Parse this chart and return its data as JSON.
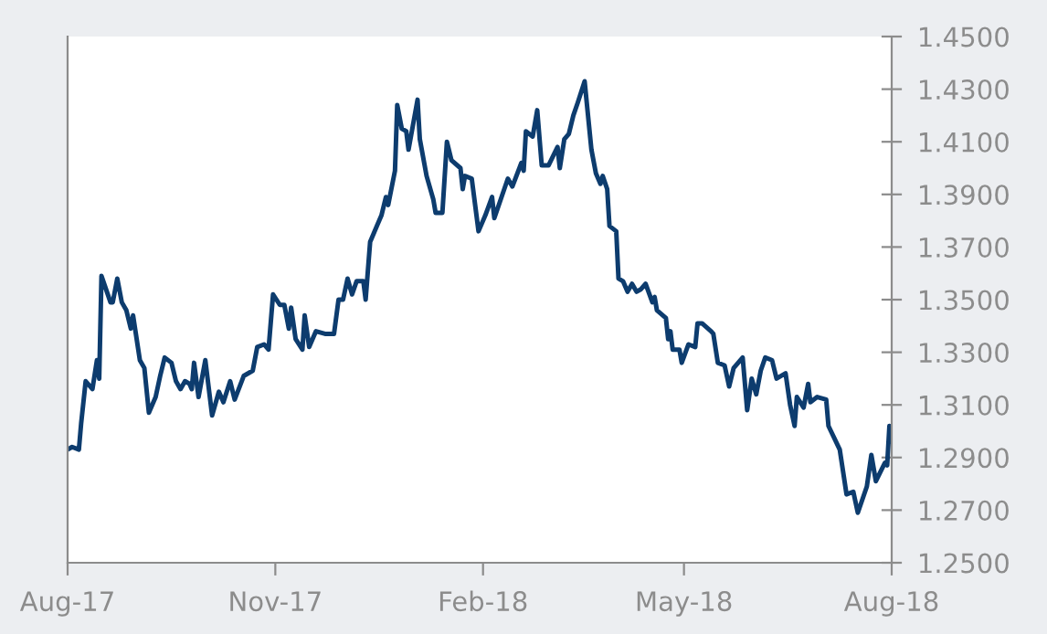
{
  "chart_data": {
    "type": "line",
    "x": [
      "2017-08-01",
      "2017-08-03",
      "2017-08-06",
      "2017-08-07",
      "2017-08-09",
      "2017-08-12",
      "2017-08-14",
      "2017-08-15",
      "2017-08-16",
      "2017-08-20",
      "2017-08-21",
      "2017-08-23",
      "2017-08-25",
      "2017-08-27",
      "2017-08-29",
      "2017-08-30",
      "2017-09-02",
      "2017-09-04",
      "2017-09-06",
      "2017-09-09",
      "2017-09-11",
      "2017-09-13",
      "2017-09-16",
      "2017-09-18",
      "2017-09-20",
      "2017-09-22",
      "2017-09-24",
      "2017-09-25",
      "2017-09-26",
      "2017-09-28",
      "2017-10-01",
      "2017-10-04",
      "2017-10-07",
      "2017-10-09",
      "2017-10-12",
      "2017-10-14",
      "2017-10-18",
      "2017-10-22",
      "2017-10-24",
      "2017-10-27",
      "2017-10-29",
      "2017-10-31",
      "2017-11-03",
      "2017-11-05",
      "2017-11-07",
      "2017-11-08",
      "2017-11-10",
      "2017-11-13",
      "2017-11-14",
      "2017-11-16",
      "2017-11-19",
      "2017-11-23",
      "2017-11-27",
      "2017-11-29",
      "2017-12-01",
      "2017-12-03",
      "2017-12-05",
      "2017-12-07",
      "2017-12-10",
      "2017-12-11",
      "2017-12-13",
      "2017-12-16",
      "2017-12-18",
      "2017-12-20",
      "2017-12-21",
      "2017-12-24",
      "2017-12-25",
      "2017-12-27",
      "2017-12-29",
      "2017-12-30",
      "2018-01-03",
      "2018-01-04",
      "2018-01-07",
      "2018-01-09",
      "2018-01-10",
      "2018-01-11",
      "2018-01-14",
      "2018-01-16",
      "2018-01-18",
      "2018-01-22",
      "2018-01-23",
      "2018-01-24",
      "2018-01-27",
      "2018-01-30",
      "2018-02-02",
      "2018-02-05",
      "2018-02-06",
      "2018-02-12",
      "2018-02-14",
      "2018-02-18",
      "2018-02-19",
      "2018-02-20",
      "2018-02-23",
      "2018-02-25",
      "2018-02-27",
      "2018-03-02",
      "2018-03-06",
      "2018-03-07",
      "2018-03-09",
      "2018-03-11",
      "2018-03-13",
      "2018-03-15",
      "2018-03-18",
      "2018-03-21",
      "2018-03-23",
      "2018-03-25",
      "2018-03-26",
      "2018-03-28",
      "2018-03-29",
      "2018-04-01",
      "2018-04-02",
      "2018-04-04",
      "2018-04-06",
      "2018-04-08",
      "2018-04-10",
      "2018-04-12",
      "2018-04-14",
      "2018-04-17",
      "2018-04-18",
      "2018-04-19",
      "2018-04-23",
      "2018-04-24",
      "2018-04-25",
      "2018-04-26",
      "2018-04-29",
      "2018-04-30",
      "2018-05-03",
      "2018-05-06",
      "2018-05-07",
      "2018-05-09",
      "2018-05-13",
      "2018-05-14",
      "2018-05-16",
      "2018-05-19",
      "2018-05-21",
      "2018-05-23",
      "2018-05-27",
      "2018-05-29",
      "2018-05-31",
      "2018-06-02",
      "2018-06-04",
      "2018-06-06",
      "2018-06-09",
      "2018-06-11",
      "2018-06-15",
      "2018-06-17",
      "2018-06-19",
      "2018-06-20",
      "2018-06-23",
      "2018-06-25",
      "2018-06-26",
      "2018-06-29",
      "2018-07-03",
      "2018-07-04",
      "2018-07-09",
      "2018-07-12",
      "2018-07-15",
      "2018-07-17",
      "2018-07-21",
      "2018-07-23",
      "2018-07-25",
      "2018-07-29",
      "2018-07-30",
      "2018-07-31",
      "2018-08-01"
    ],
    "series": [
      {
        "color": "#0d3c6e",
        "values": [
          1.293,
          1.294,
          1.293,
          1.303,
          1.319,
          1.316,
          1.327,
          1.32,
          1.359,
          1.349,
          1.349,
          1.358,
          1.349,
          1.346,
          1.339,
          1.344,
          1.327,
          1.324,
          1.307,
          1.313,
          1.321,
          1.328,
          1.326,
          1.319,
          1.316,
          1.319,
          1.318,
          1.316,
          1.326,
          1.313,
          1.327,
          1.306,
          1.315,
          1.311,
          1.319,
          1.312,
          1.321,
          1.323,
          1.332,
          1.333,
          1.331,
          1.352,
          1.348,
          1.348,
          1.339,
          1.347,
          1.335,
          1.331,
          1.344,
          1.332,
          1.338,
          1.337,
          1.337,
          1.35,
          1.35,
          1.358,
          1.352,
          1.357,
          1.357,
          1.35,
          1.372,
          1.378,
          1.382,
          1.389,
          1.386,
          1.399,
          1.424,
          1.415,
          1.414,
          1.407,
          1.426,
          1.411,
          1.397,
          1.391,
          1.388,
          1.383,
          1.383,
          1.41,
          1.403,
          1.4,
          1.392,
          1.397,
          1.396,
          1.376,
          1.382,
          1.389,
          1.381,
          1.396,
          1.393,
          1.402,
          1.399,
          1.414,
          1.412,
          1.422,
          1.401,
          1.401,
          1.408,
          1.4,
          1.411,
          1.413,
          1.42,
          1.425,
          1.433,
          1.407,
          1.398,
          1.394,
          1.397,
          1.392,
          1.378,
          1.376,
          1.358,
          1.357,
          1.353,
          1.356,
          1.353,
          1.354,
          1.356,
          1.349,
          1.351,
          1.346,
          1.343,
          1.335,
          1.338,
          1.331,
          1.331,
          1.326,
          1.333,
          1.332,
          1.341,
          1.341,
          1.338,
          1.337,
          1.326,
          1.325,
          1.317,
          1.324,
          1.328,
          1.308,
          1.32,
          1.314,
          1.323,
          1.328,
          1.327,
          1.32,
          1.322,
          1.31,
          1.302,
          1.313,
          1.309,
          1.318,
          1.311,
          1.313,
          1.312,
          1.302,
          1.293,
          1.276,
          1.277,
          1.269,
          1.279,
          1.291,
          1.281,
          1.288,
          1.287,
          1.302,
          1.296
        ]
      }
    ],
    "xlim": [
      "2017-08-01",
      "2018-08-01"
    ],
    "xticks": [
      {
        "value": "2017-08-01",
        "label": "Aug-17"
      },
      {
        "value": "2017-11-01",
        "label": "Nov-17"
      },
      {
        "value": "2018-02-01",
        "label": "Feb-18"
      },
      {
        "value": "2018-05-01",
        "label": "May-18"
      },
      {
        "value": "2018-08-01",
        "label": "Aug-18"
      }
    ],
    "ylim": [
      1.25,
      1.45
    ],
    "yticks": [
      {
        "value": 1.25,
        "label": "1.2500"
      },
      {
        "value": 1.27,
        "label": "1.2700"
      },
      {
        "value": 1.29,
        "label": "1.2900"
      },
      {
        "value": 1.31,
        "label": "1.3100"
      },
      {
        "value": 1.33,
        "label": "1.3300"
      },
      {
        "value": 1.35,
        "label": "1.3500"
      },
      {
        "value": 1.37,
        "label": "1.3700"
      },
      {
        "value": 1.39,
        "label": "1.3900"
      },
      {
        "value": 1.41,
        "label": "1.4100"
      },
      {
        "value": 1.43,
        "label": "1.4300"
      },
      {
        "value": 1.45,
        "label": "1.4500"
      }
    ],
    "grid": false
  }
}
